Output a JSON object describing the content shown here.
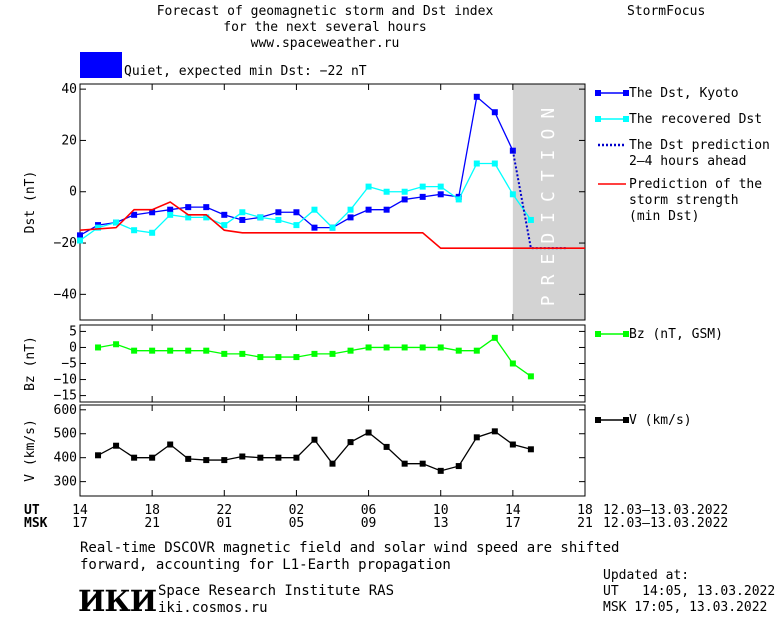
{
  "header": {
    "title_line1": "Forecast of geomagnetic storm and Dst index",
    "title_line2": "for the next several hours",
    "url": "www.spaceweather.ru",
    "brand": "StormFocus"
  },
  "status": {
    "text": "Quiet, expected min Dst: −22 nT",
    "color": "#0000ff"
  },
  "footer": {
    "note_line1": "Real-time DSCOVR magnetic field and solar wind speed are shifted",
    "note_line2": "forward, accounting for L1-Earth propagation",
    "logo": "ИКИ",
    "institute": "Space Research Institute RAS",
    "site": "iki.cosmos.ru",
    "updated_label": "Updated at:",
    "updated_ut": "UT   14:05, 13.03.2022",
    "updated_msk": "MSK 17:05, 13.03.2022"
  },
  "chart_data": [
    {
      "type": "line",
      "panel": "dst",
      "ylabel": "Dst (nT)",
      "ylim": [
        -50,
        42
      ],
      "yticks": [
        40,
        20,
        0,
        -20,
        -40
      ],
      "xlim": [
        0,
        28
      ],
      "prediction_band": {
        "x": [
          24,
          28
        ],
        "label": "PREDICTION",
        "color": "#d3d3d3"
      },
      "legend_position": "right",
      "series": [
        {
          "name": "The Dst, Kyoto",
          "color": "#0000ff",
          "x": [
            0,
            1,
            2,
            3,
            4,
            5,
            6,
            7,
            8,
            9,
            10,
            11,
            12,
            13,
            14,
            15,
            16,
            17,
            18,
            19,
            20,
            21,
            22,
            23,
            24
          ],
          "y": [
            -17,
            -13,
            -12,
            -9,
            -8,
            -7,
            -6,
            -6,
            -9,
            -11,
            -10,
            -8,
            -8,
            -14,
            -14,
            -10,
            -7,
            -7,
            -3,
            -2,
            -1,
            -2,
            37,
            31,
            16
          ]
        },
        {
          "name": "The recovered Dst",
          "color": "#00ffff",
          "x": [
            0,
            1,
            2,
            3,
            4,
            5,
            6,
            7,
            8,
            9,
            10,
            11,
            12,
            13,
            14,
            15,
            16,
            17,
            18,
            19,
            20,
            21,
            22,
            23,
            24,
            25
          ],
          "y": [
            -19,
            -14,
            -12,
            -15,
            -16,
            -9,
            -10,
            -10,
            -13,
            -8,
            -10,
            -11,
            -13,
            -7,
            -14,
            -7,
            2,
            0,
            0,
            2,
            2,
            -3,
            11,
            11,
            -1,
            -11
          ]
        },
        {
          "name": "The Dst prediction\n2–4 hours ahead",
          "color": "#0000cc",
          "dashed": true,
          "x": [
            24,
            25,
            26,
            27
          ],
          "y": [
            16,
            -22,
            -22,
            -22
          ]
        },
        {
          "name": "Prediction of the\nstorm strength\n(min Dst)",
          "color": "#ff0000",
          "x": [
            0,
            2,
            3,
            4,
            5,
            6,
            7,
            8,
            9,
            10,
            19,
            20,
            28
          ],
          "y": [
            -15,
            -14,
            -7,
            -7,
            -4,
            -9,
            -9,
            -15,
            -16,
            -16,
            -16,
            -22,
            -22
          ]
        }
      ]
    },
    {
      "type": "line",
      "panel": "bz",
      "ylabel": "Bz (nT)",
      "ylim": [
        -17,
        7
      ],
      "yticks": [
        5,
        0,
        -5,
        -10,
        -15
      ],
      "xlim": [
        0,
        28
      ],
      "legend_position": "right",
      "series": [
        {
          "name": "Bz (nT, GSM)",
          "color": "#00ff00",
          "x": [
            1,
            2,
            3,
            4,
            5,
            6,
            7,
            8,
            9,
            10,
            11,
            12,
            13,
            14,
            15,
            16,
            17,
            18,
            19,
            20,
            21,
            22,
            23,
            24,
            25
          ],
          "y": [
            0,
            1,
            -1,
            -1,
            -1,
            -1,
            -1,
            -2,
            -2,
            -3,
            -3,
            -3,
            -2,
            -2,
            -1,
            0,
            0,
            0,
            0,
            0,
            -1,
            -1,
            3,
            -5,
            -9
          ]
        }
      ]
    },
    {
      "type": "line",
      "panel": "v",
      "ylabel": "V (km/s)",
      "ylim": [
        240,
        620
      ],
      "yticks": [
        600,
        500,
        400,
        300
      ],
      "xlim": [
        0,
        28
      ],
      "legend_position": "right",
      "series": [
        {
          "name": "V (km/s)",
          "color": "#000000",
          "x": [
            1,
            2,
            3,
            4,
            5,
            6,
            7,
            8,
            9,
            10,
            11,
            12,
            13,
            14,
            15,
            16,
            17,
            18,
            19,
            20,
            21,
            22,
            23,
            24,
            25
          ],
          "y": [
            410,
            450,
            400,
            400,
            455,
            395,
            390,
            390,
            405,
            400,
            400,
            400,
            475,
            375,
            465,
            505,
            445,
            375,
            375,
            345,
            365,
            485,
            510,
            455,
            435
          ]
        }
      ],
      "x_axis": {
        "ut_label": "UT",
        "msk_label": "MSK",
        "ut_ticks": [
          "14",
          "18",
          "22",
          "02",
          "06",
          "10",
          "14",
          "18"
        ],
        "msk_ticks": [
          "17",
          "21",
          "01",
          "05",
          "09",
          "13",
          "17",
          "21"
        ],
        "tick_values": [
          0,
          4,
          8,
          12,
          16,
          20,
          24,
          28
        ],
        "date_range_ut": "12.03–13.03.2022",
        "date_range_msk": "12.03–13.03.2022"
      }
    }
  ]
}
